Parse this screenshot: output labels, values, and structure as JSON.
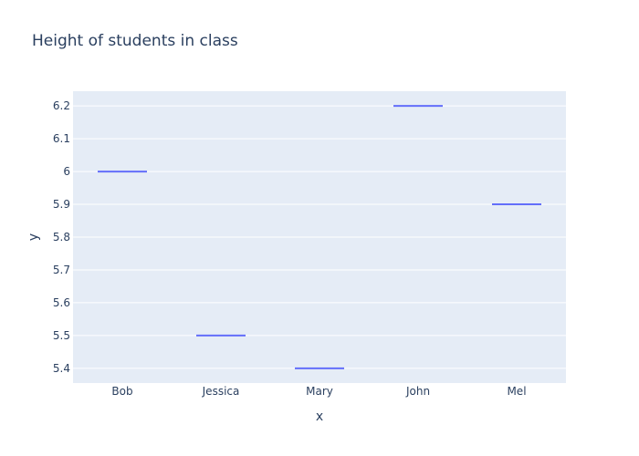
{
  "chart_data": {
    "type": "box",
    "title": "Height of students in class",
    "xlabel": "x",
    "ylabel": "y",
    "categories": [
      "Bob",
      "Jessica",
      "Mary",
      "John",
      "Mel"
    ],
    "values": [
      6.0,
      5.5,
      5.4,
      6.2,
      5.9
    ],
    "ylim": [
      5.355,
      6.245
    ],
    "yticks": [
      5.4,
      5.5,
      5.6,
      5.7,
      5.8,
      5.9,
      6.0,
      6.1,
      6.2
    ],
    "ytick_labels": [
      "5.4",
      "5.5",
      "5.6",
      "5.7",
      "5.8",
      "5.9",
      "6",
      "6.1",
      "6.2"
    ],
    "grid": true,
    "colors": {
      "plot_bg": "#e5ecf6",
      "grid": "#ffffff",
      "series": "#636efa",
      "text": "#2a3f5f"
    }
  }
}
